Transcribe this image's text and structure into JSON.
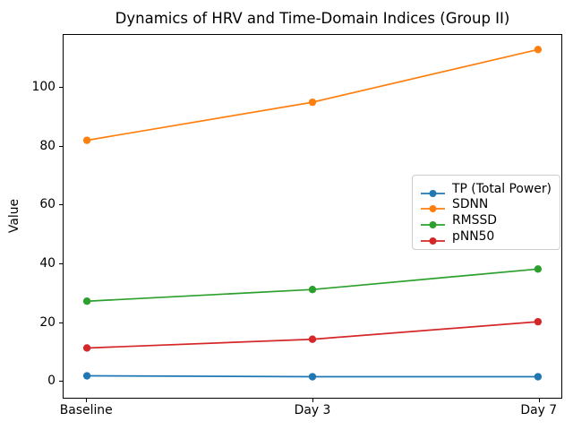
{
  "chart_data": {
    "type": "line",
    "title": "Dynamics of HRV and Time-Domain Indices (Group II)",
    "xlabel": "",
    "ylabel": "Value",
    "categories": [
      "Baseline",
      "Day 3",
      "Day 7"
    ],
    "series": [
      {
        "name": "TP (Total Power)",
        "color": "#1f77b4",
        "values": [
          1.5,
          1.2,
          1.2
        ]
      },
      {
        "name": "SDNN",
        "color": "#ff7f0e",
        "values": [
          82,
          95,
          113
        ]
      },
      {
        "name": "RMSSD",
        "color": "#2ca02c",
        "values": [
          27,
          31,
          38
        ]
      },
      {
        "name": "pNN50",
        "color": "#d62728",
        "values": [
          11,
          14,
          20
        ]
      }
    ],
    "ylim": [
      -6,
      118
    ],
    "yticks": [
      0,
      20,
      40,
      60,
      80,
      100
    ],
    "grid": false,
    "legend_position": "center-right",
    "marker": "circle",
    "line_width": 1.7,
    "marker_radius": 4.2
  }
}
